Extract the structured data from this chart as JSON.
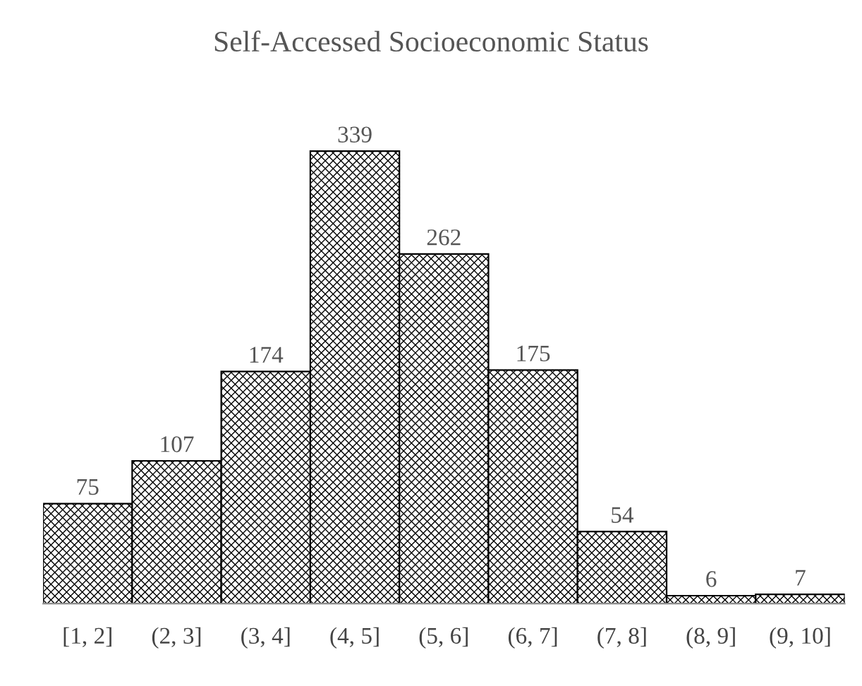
{
  "chart_data": {
    "type": "bar",
    "title": "Self-Accessed Socioeconomic Status",
    "categories": [
      "[1, 2]",
      "(2, 3]",
      "(3, 4]",
      "(4, 5]",
      "(5, 6]",
      "(6, 7]",
      "(7, 8]",
      "(8, 9]",
      "(9, 10]"
    ],
    "values": [
      75,
      107,
      174,
      339,
      262,
      175,
      54,
      6,
      7
    ],
    "color": "#000000",
    "tick_labels": "x",
    "data_labels": true
  }
}
